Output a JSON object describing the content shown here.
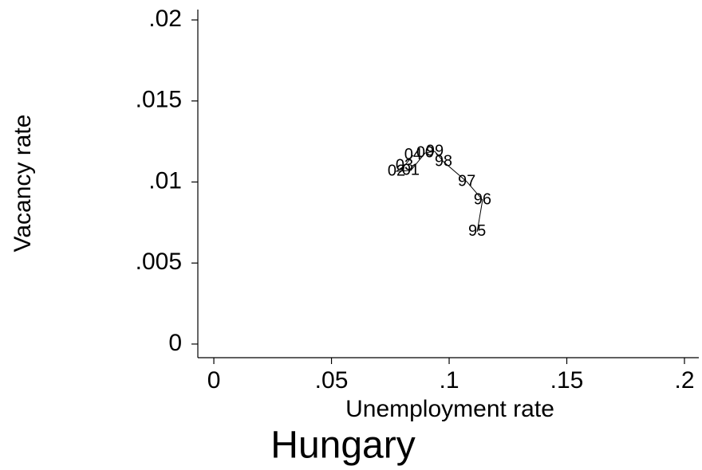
{
  "chart_data": {
    "type": "connected-scatter",
    "title": "Hungary",
    "x_label": "Unemployment rate",
    "y_label": "Vacancy rate",
    "labels": [
      "95",
      "96",
      "97",
      "98",
      "99",
      "00",
      "01",
      "02",
      "03",
      "04"
    ],
    "x": [
      0.1119,
      0.1142,
      0.1075,
      0.0976,
      0.0939,
      0.0898,
      0.0837,
      0.0776,
      0.081,
      0.0847
    ],
    "y": [
      0.00693,
      0.00889,
      0.01002,
      0.01125,
      0.01189,
      0.01179,
      0.01071,
      0.01066,
      0.011,
      0.01165
    ],
    "color": "#000000",
    "xlim": [
      -0.0068,
      0.2061
    ],
    "ylim": [
      -0.00084,
      0.02064
    ],
    "xticks": [
      0,
      {
        "value": 0.05,
        "label": ".05"
      },
      {
        "value": 0.1,
        "label": ".1"
      },
      {
        "value": 0.15,
        "label": ".15"
      },
      {
        "value": 0.2,
        "label": ".2"
      }
    ],
    "yticks": [
      0,
      {
        "value": 0.005,
        "label": ".005"
      },
      {
        "value": 0.01,
        "label": ".01"
      },
      {
        "value": 0.015,
        "label": ".015"
      },
      {
        "value": 0.02,
        "label": ".02"
      }
    ]
  }
}
